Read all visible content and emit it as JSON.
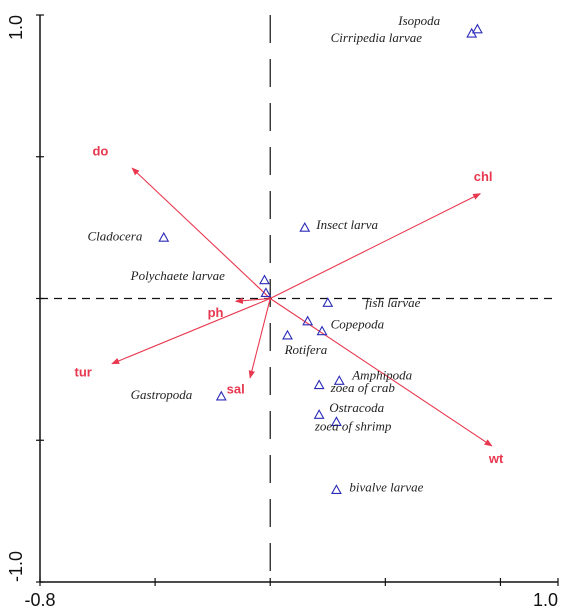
{
  "chart_data": {
    "type": "scatter",
    "title": "",
    "xlabel": "",
    "ylabel": "",
    "xlim": [
      -0.8,
      1.0
    ],
    "ylim": [
      -1.0,
      1.0
    ],
    "x_ticks": [
      -0.8,
      1.0
    ],
    "x_tick_labels": [
      "-0.8",
      "1.0"
    ],
    "y_ticks": [
      -1.0,
      1.0
    ],
    "y_tick_labels": [
      "-1.0",
      "1.0"
    ],
    "grid": false,
    "reference_lines": {
      "horizontal": 0,
      "vertical": 0
    },
    "colors": {
      "arrows": "#e8384f",
      "points": "#2b2bb8",
      "text": "#222222",
      "axes": "#111111"
    },
    "series": [
      {
        "name": "",
        "marker": "triangle",
        "points": [
          {
            "label": "Isopoda",
            "x": 0.72,
            "y": 0.95
          },
          {
            "label": "Cirripedia larvae",
            "x": 0.7,
            "y": 0.935
          },
          {
            "label": "Cladocera",
            "x": -0.37,
            "y": 0.215
          },
          {
            "label": "Insect larva",
            "x": 0.12,
            "y": 0.25
          },
          {
            "label": "Polychaete larvae",
            "x": -0.02,
            "y": 0.065
          },
          {
            "label": "Polychaete larvae 2",
            "x": -0.015,
            "y": 0.02
          },
          {
            "label": "fish larvae",
            "x": 0.2,
            "y": -0.015
          },
          {
            "label": "Copepoda",
            "x": 0.13,
            "y": -0.08
          },
          {
            "label": "Copepoda 2",
            "x": 0.18,
            "y": -0.115
          },
          {
            "label": "Rotifera",
            "x": 0.06,
            "y": -0.13
          },
          {
            "label": "Amphipoda",
            "x": 0.24,
            "y": -0.29
          },
          {
            "label": "zoea of crab",
            "x": 0.17,
            "y": -0.305
          },
          {
            "label": "Gastropoda",
            "x": -0.17,
            "y": -0.345
          },
          {
            "label": "Ostracoda",
            "x": 0.17,
            "y": -0.41
          },
          {
            "label": "zoea of shrimp",
            "x": 0.23,
            "y": -0.435
          },
          {
            "label": "bivalve larvae",
            "x": 0.23,
            "y": -0.675
          }
        ]
      }
    ],
    "species_labels": [
      {
        "text": "Isopoda",
        "x": 0.445,
        "y": 0.965
      },
      {
        "text": "Cirripedia larvae",
        "x": 0.21,
        "y": 0.905
      },
      {
        "text": "Cladocera",
        "x": -0.635,
        "y": 0.205
      },
      {
        "text": "Insect larva",
        "x": 0.16,
        "y": 0.245
      },
      {
        "text": "Polychaete larvae",
        "x": -0.485,
        "y": 0.065
      },
      {
        "text": "fish larvae",
        "x": 0.33,
        "y": -0.03
      },
      {
        "text": "Copepoda",
        "x": 0.21,
        "y": -0.105
      },
      {
        "text": "Rotifera",
        "x": 0.05,
        "y": -0.195
      },
      {
        "text": "Amphipoda",
        "x": 0.285,
        "y": -0.285
      },
      {
        "text": "zoea of crab",
        "x": 0.21,
        "y": -0.33
      },
      {
        "text": "Gastropoda",
        "x": -0.485,
        "y": -0.355
      },
      {
        "text": "Ostracoda",
        "x": 0.205,
        "y": -0.4
      },
      {
        "text": "zoea of shrimp",
        "x": 0.155,
        "y": -0.465
      },
      {
        "text": "bivalve larvae",
        "x": 0.275,
        "y": -0.68
      }
    ],
    "arrows": [
      {
        "name": "chl",
        "x": 0.73,
        "y": 0.37,
        "label_x": 0.74,
        "label_y": 0.415
      },
      {
        "name": "do",
        "x": -0.48,
        "y": 0.46,
        "label_x": -0.59,
        "label_y": 0.505
      },
      {
        "name": "tur",
        "x": -0.55,
        "y": -0.23,
        "label_x": -0.65,
        "label_y": -0.275
      },
      {
        "name": "ph",
        "x": -0.12,
        "y": -0.01,
        "label_x": -0.19,
        "label_y": -0.065
      },
      {
        "name": "sal",
        "x": -0.07,
        "y": -0.28,
        "label_x": -0.12,
        "label_y": -0.335
      },
      {
        "name": "wt",
        "x": 0.77,
        "y": -0.52,
        "label_x": 0.785,
        "label_y": -0.58
      }
    ]
  }
}
